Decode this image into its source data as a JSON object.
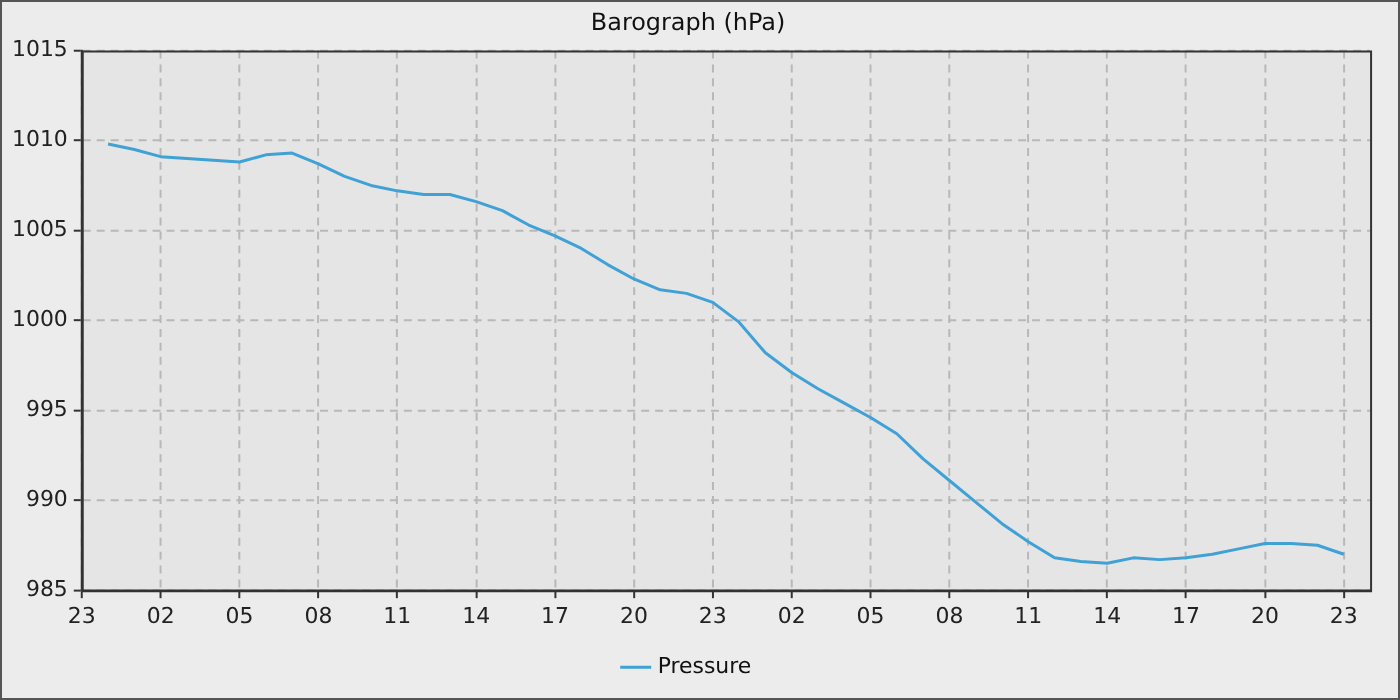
{
  "chart_data": {
    "type": "line",
    "title": "Barograph (hPa)",
    "categories": [
      "23",
      null,
      null,
      "02",
      null,
      null,
      "05",
      null,
      null,
      "08",
      null,
      null,
      "11",
      null,
      null,
      "14",
      null,
      null,
      "17",
      null,
      null,
      "20",
      null,
      null,
      "23",
      null,
      null,
      "02",
      null,
      null,
      "05",
      null,
      null,
      "08",
      null,
      null,
      "11",
      null,
      null,
      "14",
      null,
      null,
      "17",
      null,
      null,
      "20",
      null,
      null,
      "23",
      null
    ],
    "series": [
      {
        "name": "Pressure",
        "color": "#3fa1d6",
        "values": [
          null,
          1009.8,
          1009.5,
          1009.1,
          1009.0,
          1008.9,
          1008.8,
          1009.2,
          1009.3,
          1008.7,
          1008.0,
          1007.5,
          1007.2,
          1007.0,
          1007.0,
          1006.6,
          1006.1,
          1005.3,
          1004.7,
          1004.0,
          1003.1,
          1002.3,
          1001.7,
          1001.5,
          1001.0,
          999.9,
          998.2,
          997.1,
          996.2,
          995.4,
          994.6,
          993.7,
          992.3,
          991.1,
          989.9,
          988.7,
          987.7,
          986.8,
          986.6,
          986.5,
          986.8,
          986.7,
          986.8,
          987.0,
          987.3,
          987.6,
          987.6,
          987.5,
          987.0,
          null
        ]
      }
    ],
    "ylim": [
      985,
      1015
    ],
    "yticks": [
      985,
      990,
      995,
      1000,
      1005,
      1010,
      1015
    ],
    "grid": true,
    "legend": "bottom",
    "marker": "none",
    "line_style": "solid"
  }
}
